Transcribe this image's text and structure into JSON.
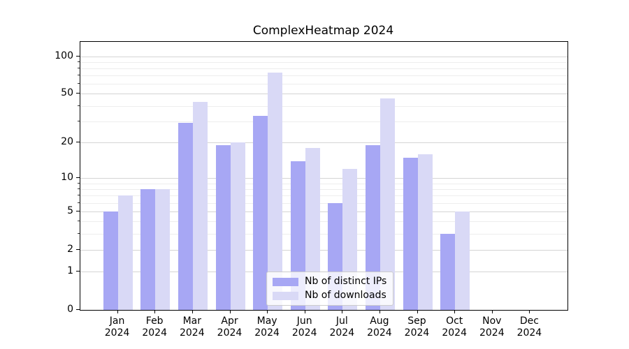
{
  "chart_data": {
    "type": "bar",
    "title": "ComplexHeatmap 2024",
    "categories": [
      "Jan",
      "Feb",
      "Mar",
      "Apr",
      "May",
      "Jun",
      "Jul",
      "Aug",
      "Sep",
      "Oct",
      "Nov",
      "Dec"
    ],
    "x_tick_year": "2024",
    "series": [
      {
        "name": "Nb of distinct IPs",
        "color": "#a7a7f4",
        "values": [
          5,
          8,
          29,
          19,
          33,
          14,
          6,
          19,
          15,
          3,
          0,
          0
        ]
      },
      {
        "name": "Nb of downloads",
        "color": "#d9d9f6",
        "values": [
          7,
          8,
          43,
          20,
          74,
          18,
          12,
          46,
          16,
          5,
          0,
          0
        ]
      }
    ],
    "y_scale": "log1p",
    "ylim": [
      0,
      130
    ],
    "xlim": [
      -1,
      12
    ],
    "y_ticks": [
      0,
      1,
      2,
      5,
      10,
      20,
      50,
      100
    ],
    "y_minor_ticks": [
      3,
      4,
      6,
      7,
      8,
      9,
      30,
      40,
      60,
      70,
      80,
      90
    ],
    "grid": true,
    "legend_position": "lower center",
    "colors": {
      "major_grid": "#d4d4d4",
      "minor_grid": "#ededed",
      "axis": "#000000",
      "background": "#ffffff"
    }
  }
}
